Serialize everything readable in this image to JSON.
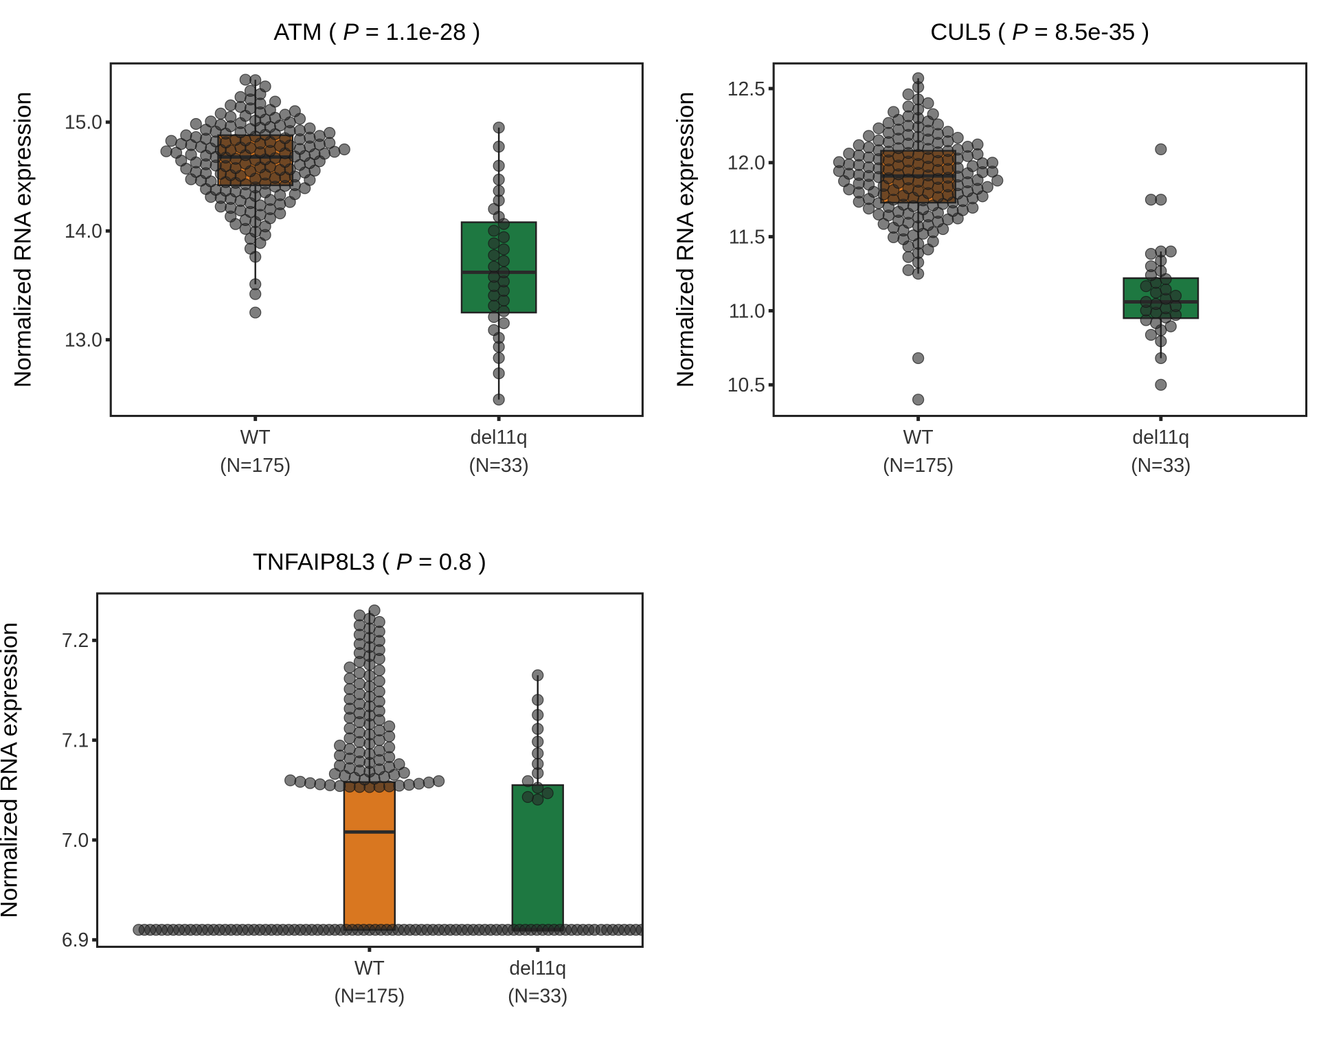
{
  "chart_data": [
    {
      "type": "boxplot",
      "gene": "ATM",
      "title": "ATM",
      "p_label": "P",
      "p_value": "1.1e-28",
      "ylabel": "Normalized RNA expression",
      "ylim": [
        12.3,
        15.54
      ],
      "yticks": [
        "13.0",
        "14.0",
        "15.0"
      ],
      "ytick_values": [
        13.0,
        14.0,
        15.0
      ],
      "categories": [
        "WT",
        "del11q"
      ],
      "category_counts": [
        "(N=175)",
        "(N=33)"
      ],
      "groups": [
        {
          "name": "WT",
          "n": 175,
          "color": "#D97720",
          "q1": 14.42,
          "median": 14.68,
          "q3": 14.88,
          "whisker_low": 13.51,
          "whisker_high": 15.39,
          "outliers": [
            13.42,
            13.25
          ],
          "floor": null,
          "floor_n": 0
        },
        {
          "name": "del11q",
          "n": 33,
          "color": "#1E7841",
          "q1": 13.25,
          "median": 13.62,
          "q3": 14.08,
          "whisker_low": 12.45,
          "whisker_high": 14.95,
          "outliers": [],
          "floor": null,
          "floor_n": 0
        }
      ]
    },
    {
      "type": "boxplot",
      "gene": "CUL5",
      "title": "CUL5",
      "p_label": "P",
      "p_value": "8.5e-35",
      "ylabel": "Normalized RNA expression",
      "ylim": [
        10.29,
        12.67
      ],
      "yticks": [
        "10.5",
        "11.0",
        "11.5",
        "12.0",
        "12.5"
      ],
      "ytick_values": [
        10.5,
        11.0,
        11.5,
        12.0,
        12.5
      ],
      "categories": [
        "WT",
        "del11q"
      ],
      "category_counts": [
        "(N=175)",
        "(N=33)"
      ],
      "groups": [
        {
          "name": "WT",
          "n": 175,
          "color": "#D97720",
          "q1": 11.73,
          "median": 11.91,
          "q3": 12.08,
          "whisker_low": 11.25,
          "whisker_high": 12.57,
          "outliers": [
            10.68,
            10.4
          ],
          "floor": null,
          "floor_n": 0
        },
        {
          "name": "del11q",
          "n": 33,
          "color": "#1E7841",
          "q1": 10.95,
          "median": 11.06,
          "q3": 11.22,
          "whisker_low": 10.68,
          "whisker_high": 11.4,
          "outliers": [
            12.09,
            11.75,
            11.75,
            10.5
          ],
          "floor": null,
          "floor_n": 0
        }
      ]
    },
    {
      "type": "boxplot",
      "gene": "TNFAIP8L3",
      "title": "TNFAIP8L3",
      "p_label": "P",
      "p_value": "0.8",
      "ylabel": "Normalized RNA expression",
      "ylim": [
        6.893,
        7.247
      ],
      "yticks": [
        "6.9",
        "7.0",
        "7.1",
        "7.2"
      ],
      "ytick_values": [
        6.9,
        7.0,
        7.1,
        7.2
      ],
      "categories": [
        "WT",
        "del11q"
      ],
      "category_counts": [
        "(N=175)",
        "(N=33)"
      ],
      "groups": [
        {
          "name": "WT",
          "n": 175,
          "color": "#D97720",
          "q1": 6.91,
          "median": 7.008,
          "q3": 7.058,
          "whisker_low": 6.91,
          "whisker_high": 7.23,
          "outliers": [],
          "floor": 6.91,
          "floor_n": 80
        },
        {
          "name": "del11q",
          "n": 33,
          "color": "#1E7841",
          "q1": 6.91,
          "median": 6.91,
          "q3": 7.055,
          "whisker_low": 6.91,
          "whisker_high": 7.165,
          "outliers": [],
          "floor": 6.91,
          "floor_n": 20
        }
      ]
    }
  ]
}
